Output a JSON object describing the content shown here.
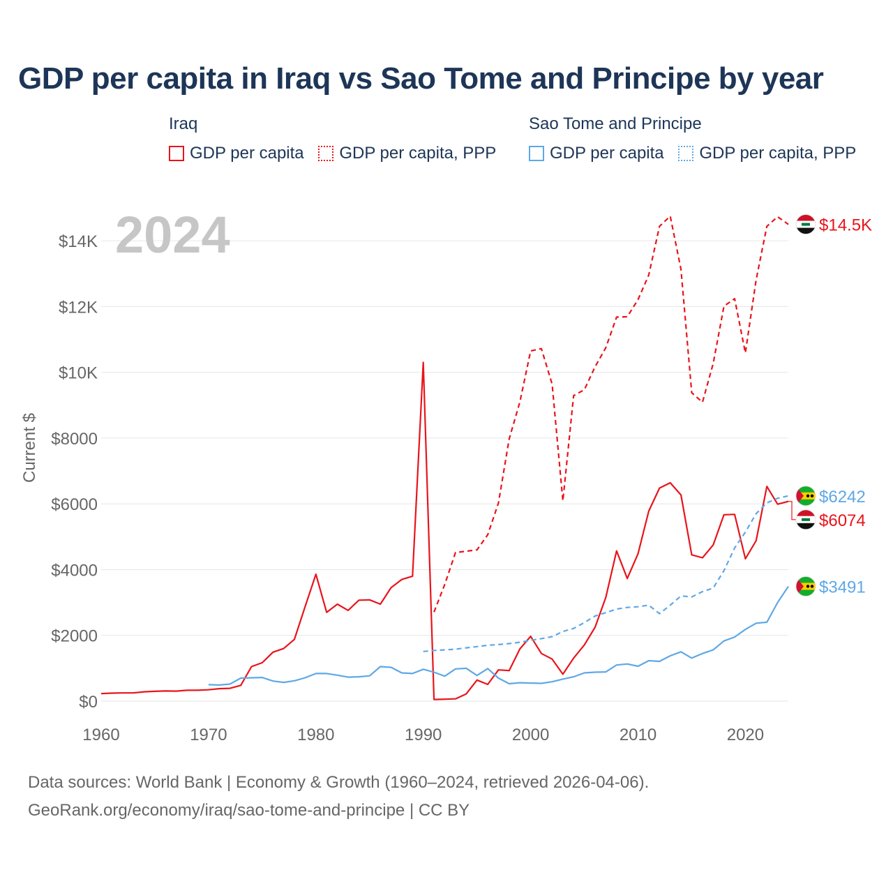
{
  "title": "GDP per capita in Iraq vs Sao Tome and Principe by year",
  "legend": {
    "groups": [
      {
        "name": "Iraq",
        "color": "#e8141b",
        "items": [
          {
            "label": "GDP per capita",
            "style": "solid"
          },
          {
            "label": "GDP per capita, PPP",
            "style": "dotted"
          }
        ]
      },
      {
        "name": "Sao Tome and Principe",
        "color": "#5ea8e6",
        "items": [
          {
            "label": "GDP per capita",
            "style": "solid"
          },
          {
            "label": "GDP per capita, PPP",
            "style": "dotted"
          }
        ]
      }
    ]
  },
  "footer": {
    "line1": "Data sources: World Bank | Economy & Growth (1960–2024, retrieved 2026-04-06).",
    "line2": "GeoRank.org/economy/iraq/sao-tome-and-principe | CC BY"
  },
  "colors": {
    "iraq": "#e8141b",
    "stp": "#5ea8e6",
    "title": "#1d3557",
    "axis_text": "#666666",
    "year_watermark": "#c6c6c6",
    "grid": "#e6e6e6"
  },
  "chart_data": {
    "type": "line",
    "year_label": "2024",
    "ylabel": "Current $",
    "xlim": [
      1960,
      2024
    ],
    "ylim": [
      0,
      15000
    ],
    "x_ticks": [
      1960,
      1970,
      1980,
      1990,
      2000,
      2010,
      2020
    ],
    "y_ticks": [
      0,
      2000,
      4000,
      6000,
      8000,
      10000,
      12000,
      14000
    ],
    "y_tick_labels": [
      "$0",
      "$2000",
      "$4000",
      "$6000",
      "$8000",
      "$10K",
      "$12K",
      "$14K"
    ],
    "series": [
      {
        "id": "iraq-gdp",
        "name": "Iraq GDP per capita",
        "country": "Iraq",
        "dash": "solid",
        "color": "#e8141b",
        "start_year": 1960,
        "values": [
          230,
          245,
          250,
          250,
          285,
          300,
          310,
          305,
          330,
          330,
          345,
          380,
          390,
          480,
          1050,
          1170,
          1490,
          1600,
          1880,
          2880,
          3860,
          2700,
          2950,
          2760,
          3070,
          3080,
          2950,
          3450,
          3700,
          3800,
          10300,
          50,
          60,
          70,
          220,
          640,
          510,
          950,
          930,
          1590,
          1970,
          1450,
          1280,
          820,
          1310,
          1710,
          2250,
          3160,
          4570,
          3730,
          4480,
          5780,
          6480,
          6640,
          6270,
          4450,
          4360,
          4750,
          5670,
          5680,
          4330,
          4880,
          6530,
          5990,
          6074
        ],
        "end_label": "$6074"
      },
      {
        "id": "iraq-ppp",
        "name": "Iraq GDP per capita, PPP",
        "country": "Iraq",
        "dash": "dash",
        "color": "#e8141b",
        "start_year": 1991,
        "values": [
          2710,
          3550,
          4520,
          4560,
          4600,
          5060,
          6030,
          7970,
          9100,
          10650,
          10720,
          9640,
          6090,
          9290,
          9470,
          10170,
          10750,
          11680,
          11690,
          12210,
          12960,
          14440,
          14750,
          13130,
          9380,
          9090,
          10270,
          12010,
          12240,
          10590,
          12810,
          14440,
          14730,
          14500
        ],
        "end_label": "$14.5K"
      },
      {
        "id": "stp-gdp",
        "name": "Sao Tome and Principe GDP per capita",
        "country": "Sao Tome and Principe",
        "dash": "solid",
        "color": "#5ea8e6",
        "start_year": 1970,
        "values": [
          500,
          490,
          520,
          700,
          710,
          720,
          610,
          570,
          620,
          710,
          840,
          840,
          790,
          730,
          740,
          770,
          1050,
          1030,
          860,
          840,
          970,
          880,
          760,
          980,
          1000,
          780,
          990,
          700,
          530,
          560,
          550,
          540,
          590,
          670,
          740,
          860,
          880,
          890,
          1100,
          1130,
          1060,
          1230,
          1210,
          1380,
          1500,
          1310,
          1450,
          1560,
          1830,
          1950,
          2180,
          2370,
          2400,
          3000,
          3491
        ],
        "end_label": "$3491"
      },
      {
        "id": "stp-ppp",
        "name": "Sao Tome and Principe GDP per capita, PPP",
        "country": "Sao Tome and Principe",
        "dash": "dash",
        "color": "#5ea8e6",
        "start_year": 1990,
        "values": [
          1510,
          1540,
          1560,
          1580,
          1620,
          1660,
          1700,
          1720,
          1750,
          1790,
          1850,
          1900,
          1960,
          2120,
          2210,
          2390,
          2590,
          2690,
          2800,
          2850,
          2870,
          2920,
          2660,
          2920,
          3200,
          3170,
          3330,
          3440,
          3970,
          4660,
          5140,
          5700,
          6030,
          6170,
          6242
        ],
        "end_label": "$6242"
      }
    ]
  }
}
